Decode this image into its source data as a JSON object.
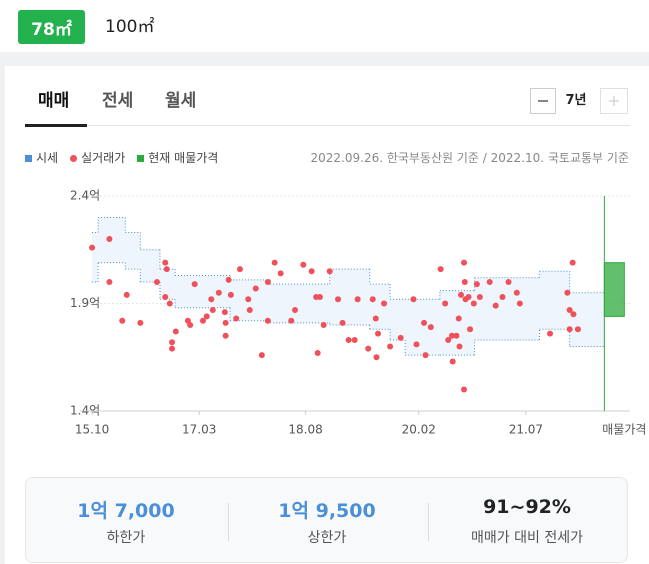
{
  "area_tabs": {
    "selected": "78㎡",
    "other": "100㎡"
  },
  "tabs": [
    "매매",
    "전세",
    "월세"
  ],
  "period": "7년",
  "chart_data": {
    "type": "band-scatter",
    "source": "2022.09.26. 한국부동산원 기준 / 2022.10. 국토교통부 기준",
    "xlim": [
      15.59,
      22.88
    ],
    "xticks": [
      {
        "value": 15.75,
        "label": "15.10"
      },
      {
        "value": 17.17,
        "label": "17.03"
      },
      {
        "value": 18.58,
        "label": "18.08"
      },
      {
        "value": 20.08,
        "label": "20.02"
      },
      {
        "value": 21.5,
        "label": "21.07"
      }
    ],
    "ylim": [
      1.4,
      2.4
    ],
    "yticks": [
      {
        "value": 1.4,
        "label": "1.4억"
      },
      {
        "value": 1.9,
        "label": "1.9억"
      },
      {
        "value": 2.4,
        "label": "2.4억"
      }
    ],
    "grid": true,
    "series": [
      {
        "name": "시세",
        "color": "#4a8fd8",
        "x": [
          15.75,
          15.83,
          16.19,
          16.39,
          16.65,
          16.85,
          17.58,
          18.11,
          18.9,
          19.43,
          19.7,
          19.9,
          20.36,
          20.82,
          21.68,
          22.08
        ],
        "upper": [
          2.23,
          2.3,
          2.23,
          2.15,
          2.06,
          2.03,
          2.01,
          1.99,
          2.06,
          1.99,
          1.92,
          1.92,
          1.96,
          2.02,
          2.05,
          1.95
        ],
        "lower": [
          2.0,
          2.09,
          2.06,
          2.0,
          1.92,
          1.88,
          1.82,
          1.81,
          1.8,
          1.78,
          1.73,
          1.66,
          1.66,
          1.73,
          1.78,
          1.7
        ]
      },
      {
        "name": "실거래가",
        "color": "#f0505a",
        "x": [
          15.75,
          15.98,
          15.98,
          16.15,
          16.21,
          16.39,
          16.61,
          16.72,
          16.74,
          16.72,
          16.78,
          16.81,
          16.81,
          16.86,
          17.02,
          17.05,
          17.11,
          17.22,
          17.27,
          17.33,
          17.35,
          17.43,
          17.51,
          17.52,
          17.52,
          17.56,
          17.59,
          17.66,
          17.71,
          17.82,
          17.84,
          17.92,
          18.0,
          18.08,
          18.08,
          18.17,
          18.25,
          18.39,
          18.44,
          18.55,
          18.66,
          18.72,
          18.74,
          18.77,
          18.82,
          18.9,
          19.01,
          19.07,
          19.15,
          19.23,
          19.27,
          19.41,
          19.47,
          19.51,
          19.52,
          19.54,
          19.62,
          19.7,
          19.84,
          20.01,
          20.05,
          20.15,
          20.17,
          20.24,
          20.37,
          20.43,
          20.47,
          20.52,
          20.53,
          20.58,
          20.61,
          20.62,
          20.64,
          20.68,
          20.68,
          20.69,
          20.7,
          20.74,
          20.76,
          20.81,
          20.85,
          20.89,
          21.02,
          21.1,
          21.19,
          21.27,
          21.38,
          21.42,
          21.82,
          22.05,
          22.08,
          22.08,
          22.12,
          22.13,
          22.19
        ],
        "values": [
          2.16,
          2.2,
          2.0,
          1.82,
          1.94,
          1.81,
          2.0,
          2.09,
          2.06,
          1.93,
          1.9,
          1.72,
          1.69,
          1.77,
          1.82,
          1.8,
          1.99,
          1.82,
          1.84,
          1.92,
          1.87,
          1.95,
          1.86,
          1.81,
          1.75,
          2.01,
          1.94,
          1.83,
          2.06,
          1.92,
          1.87,
          1.97,
          1.66,
          2.0,
          1.82,
          2.09,
          2.04,
          1.82,
          1.87,
          2.08,
          2.05,
          1.93,
          1.67,
          1.93,
          1.8,
          2.05,
          1.92,
          1.81,
          1.73,
          1.73,
          1.92,
          1.69,
          1.92,
          1.83,
          1.65,
          1.76,
          1.9,
          1.7,
          1.74,
          1.92,
          1.71,
          1.81,
          1.66,
          1.79,
          2.06,
          1.9,
          1.73,
          1.75,
          1.63,
          1.75,
          1.83,
          1.7,
          1.94,
          1.5,
          2.09,
          2.0,
          1.92,
          1.93,
          1.78,
          1.9,
          1.99,
          1.93,
          2.0,
          1.89,
          1.93,
          2.0,
          1.95,
          1.9,
          1.76,
          1.95,
          1.87,
          1.78,
          2.09,
          1.85,
          1.78
        ]
      }
    ],
    "listing": {
      "name": "현재 매물가격",
      "label": "매물가격",
      "color": "#2eaa3c",
      "x": 22.54,
      "low": 1.84,
      "high": 2.09
    }
  },
  "summary": [
    {
      "value": "1억 7,000",
      "label": "하한가"
    },
    {
      "value": "1억 9,500",
      "label": "상한가"
    },
    {
      "value": "91~92%",
      "label": "매매가 대비 전세가"
    }
  ]
}
